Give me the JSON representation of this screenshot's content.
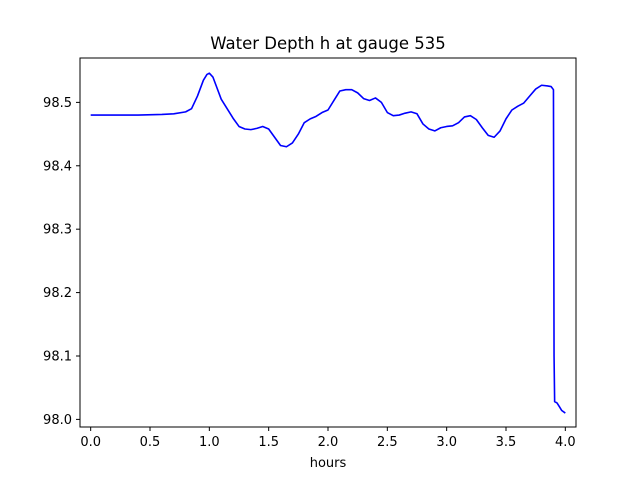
{
  "chart_data": {
    "type": "line",
    "title": "Water Depth h at gauge 535",
    "xlabel": "hours",
    "ylabel": "",
    "xlim": [
      -0.09,
      4.09
    ],
    "ylim": [
      97.988,
      98.57
    ],
    "x_ticks": [
      0.0,
      0.5,
      1.0,
      1.5,
      2.0,
      2.5,
      3.0,
      3.5,
      4.0
    ],
    "x_tick_labels": [
      "0.0",
      "0.5",
      "1.0",
      "1.5",
      "2.0",
      "2.5",
      "3.0",
      "3.5",
      "4.0"
    ],
    "y_ticks": [
      98.0,
      98.1,
      98.2,
      98.3,
      98.4,
      98.5
    ],
    "y_tick_labels": [
      "98.0",
      "98.1",
      "98.2",
      "98.3",
      "98.4",
      "98.5"
    ],
    "grid": false,
    "series": [
      {
        "color": "#0000ff",
        "x": [
          0.0,
          0.2,
          0.4,
          0.6,
          0.7,
          0.8,
          0.85,
          0.9,
          0.95,
          0.98,
          1.0,
          1.03,
          1.06,
          1.1,
          1.15,
          1.2,
          1.25,
          1.3,
          1.35,
          1.4,
          1.45,
          1.5,
          1.55,
          1.6,
          1.65,
          1.7,
          1.75,
          1.8,
          1.85,
          1.9,
          1.95,
          2.0,
          2.05,
          2.1,
          2.15,
          2.2,
          2.25,
          2.3,
          2.35,
          2.4,
          2.45,
          2.5,
          2.55,
          2.6,
          2.65,
          2.7,
          2.75,
          2.8,
          2.85,
          2.9,
          2.95,
          3.0,
          3.05,
          3.1,
          3.15,
          3.2,
          3.25,
          3.3,
          3.35,
          3.4,
          3.45,
          3.5,
          3.55,
          3.6,
          3.65,
          3.7,
          3.75,
          3.8,
          3.85,
          3.88,
          3.9,
          3.905,
          3.91,
          3.93,
          3.95,
          3.97,
          4.0
        ],
        "y": [
          98.48,
          98.48,
          98.48,
          98.481,
          98.482,
          98.485,
          98.49,
          98.51,
          98.535,
          98.544,
          98.546,
          98.54,
          98.525,
          98.505,
          98.49,
          98.475,
          98.462,
          98.458,
          98.457,
          98.459,
          98.462,
          98.458,
          98.445,
          98.432,
          98.43,
          98.436,
          98.45,
          98.468,
          98.474,
          98.478,
          98.484,
          98.488,
          98.503,
          98.518,
          98.52,
          98.52,
          98.515,
          98.506,
          98.503,
          98.507,
          98.5,
          98.484,
          98.479,
          98.48,
          98.483,
          98.485,
          98.482,
          98.466,
          98.458,
          98.455,
          98.46,
          98.462,
          98.463,
          98.468,
          98.477,
          98.479,
          98.473,
          98.46,
          98.448,
          98.445,
          98.455,
          98.474,
          98.488,
          98.494,
          98.499,
          98.51,
          98.521,
          98.527,
          98.526,
          98.525,
          98.52,
          98.1,
          98.028,
          98.026,
          98.02,
          98.014,
          98.01
        ]
      }
    ]
  }
}
